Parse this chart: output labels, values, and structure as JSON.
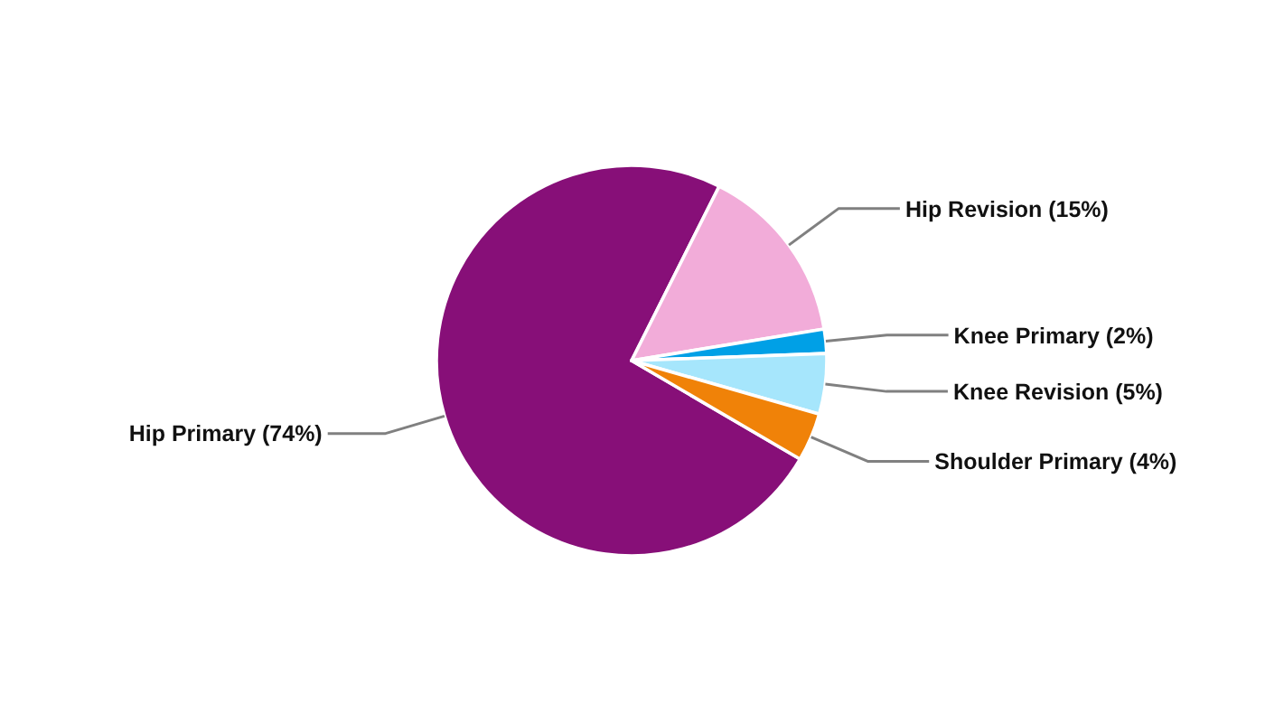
{
  "chart_data": {
    "type": "pie",
    "categories": [
      "Hip Primary",
      "Hip Revision",
      "Knee Primary",
      "Knee Revision",
      "Shoulder Primary"
    ],
    "values": [
      74,
      15,
      2,
      5,
      4
    ],
    "colors": [
      "#870f78",
      "#f2acd9",
      "#00a0e6",
      "#a6e6fc",
      "#f08208"
    ],
    "value_labels": [
      "(74%)",
      "(15%)",
      "(2%)",
      "(5%)",
      "(4%)"
    ]
  }
}
